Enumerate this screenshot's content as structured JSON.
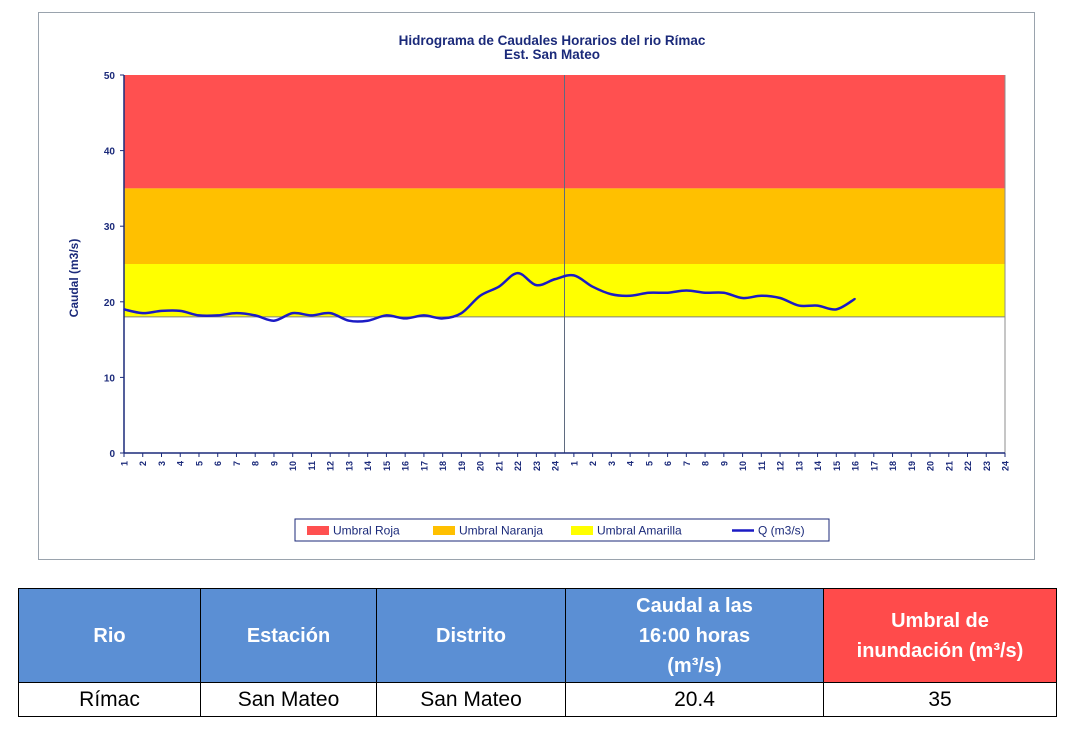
{
  "chart_data": {
    "type": "line",
    "title": "Hidrograma de Caudales Horarios del rio Rímac",
    "subtitle": "Est. San Mateo",
    "ylabel": "Caudal  (m3/s)",
    "xlabel": "",
    "ylim": [
      0,
      50
    ],
    "y_ticks": [
      "0",
      "10",
      "20",
      "30",
      "40",
      "50"
    ],
    "x_tick_labels": [
      "1",
      "2",
      "3",
      "4",
      "5",
      "6",
      "7",
      "8",
      "9",
      "10",
      "11",
      "12",
      "13",
      "14",
      "15",
      "16",
      "17",
      "18",
      "19",
      "20",
      "21",
      "22",
      "23",
      "24",
      "1",
      "2",
      "3",
      "4",
      "5",
      "6",
      "7",
      "8",
      "9",
      "10",
      "11",
      "12",
      "13",
      "14",
      "15",
      "16",
      "17",
      "18",
      "19",
      "20",
      "21",
      "22",
      "23",
      "24"
    ],
    "bands": [
      {
        "name": "Umbral Roja",
        "from": 35,
        "to": 50,
        "color": "#ff5050"
      },
      {
        "name": "Umbral Naranja",
        "from": 25,
        "to": 35,
        "color": "#ffc000"
      },
      {
        "name": "Umbral Amarilla",
        "from": 18,
        "to": 25,
        "color": "#ffff00"
      }
    ],
    "series": [
      {
        "name": "Q (m3/s)",
        "color": "#1b1bc4",
        "values": [
          19.0,
          18.5,
          18.8,
          18.8,
          18.2,
          18.2,
          18.5,
          18.2,
          17.5,
          18.5,
          18.2,
          18.5,
          17.5,
          17.5,
          18.2,
          17.8,
          18.2,
          17.8,
          18.5,
          20.8,
          22.0,
          23.8,
          22.2,
          23.0,
          23.5,
          22.0,
          21.0,
          20.8,
          21.2,
          21.2,
          21.5,
          21.2,
          21.2,
          20.5,
          20.8,
          20.5,
          19.5,
          19.5,
          19.0,
          20.4
        ]
      }
    ],
    "day_divider_after_index": 23,
    "legend_position": "bottom",
    "grid": false
  },
  "table": {
    "headers": [
      "Rio",
      "Estación",
      "Distrito",
      "Caudal a las 16:00 horas (m³/s)",
      "Umbral de inundación (m³/s)"
    ],
    "header_caudal_lines": [
      "Caudal a las",
      "16:00 horas",
      "(m³/s)"
    ],
    "header_umbral_lines": [
      "Umbral de",
      "inundación (m³/s)"
    ],
    "row": [
      "Rímac",
      "San Mateo",
      "San Mateo",
      "20.4",
      "35"
    ],
    "header_color": "#5b8fd4",
    "threshold_header_color": "#ff4b4b"
  }
}
